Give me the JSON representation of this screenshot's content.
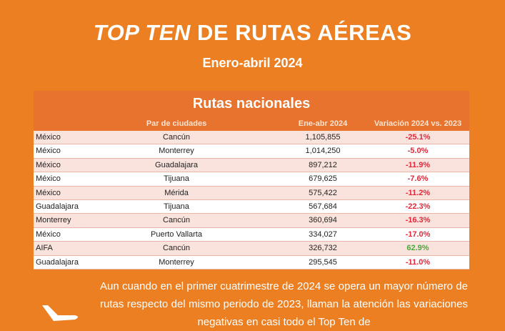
{
  "title": {
    "italic": "TOP TEN",
    "rest": " DE RUTAS AÉREAS"
  },
  "subtitle": "Enero-abril 2024",
  "table": {
    "title": "Rutas nacionales",
    "headers": {
      "pair": "Par de ciudades",
      "value": "Ene-abr 2024",
      "variation": "Variación  2024 vs. 2023"
    },
    "rows": [
      {
        "origin": "México",
        "destination": "Cancún",
        "value": "1,105,855",
        "variation": "-25.1%"
      },
      {
        "origin": "México",
        "destination": "Monterrey",
        "value": "1,014,250",
        "variation": "-5.0%"
      },
      {
        "origin": "México",
        "destination": "Guadalajara",
        "value": "897,212",
        "variation": "-11.9%"
      },
      {
        "origin": "México",
        "destination": "Tijuana",
        "value": "679,625",
        "variation": "-7.6%"
      },
      {
        "origin": "México",
        "destination": "Mérida",
        "value": "575,422",
        "variation": "-11.2%"
      },
      {
        "origin": "Guadalajara",
        "destination": "Tijuana",
        "value": "567,684",
        "variation": "-22.3%"
      },
      {
        "origin": "Monterrey",
        "destination": "Cancún",
        "value": "360,694",
        "variation": "-16.3%"
      },
      {
        "origin": "México",
        "destination": "Puerto Vallarta",
        "value": "334,027",
        "variation": "-17.0%"
      },
      {
        "origin": "AIFA",
        "destination": "Cancún",
        "value": "326,732",
        "variation": "62.9%"
      },
      {
        "origin": "Guadalajara",
        "destination": "Monterrey",
        "value": "295,545",
        "variation": "-11.0%"
      }
    ]
  },
  "paragraph": "Aun cuando en el primer cuatrimestre de 2024 se opera un mayor número de rutas respecto del mismo periodo de 2023, llaman la atención las variaciones negativas en casi todo el Top Ten de",
  "colors": {
    "background": "#ec7f22",
    "table_header": "#e8732f",
    "negative": "#e0283a",
    "positive": "#4aa83a"
  },
  "icons": {
    "plane": "airplane-icon"
  }
}
